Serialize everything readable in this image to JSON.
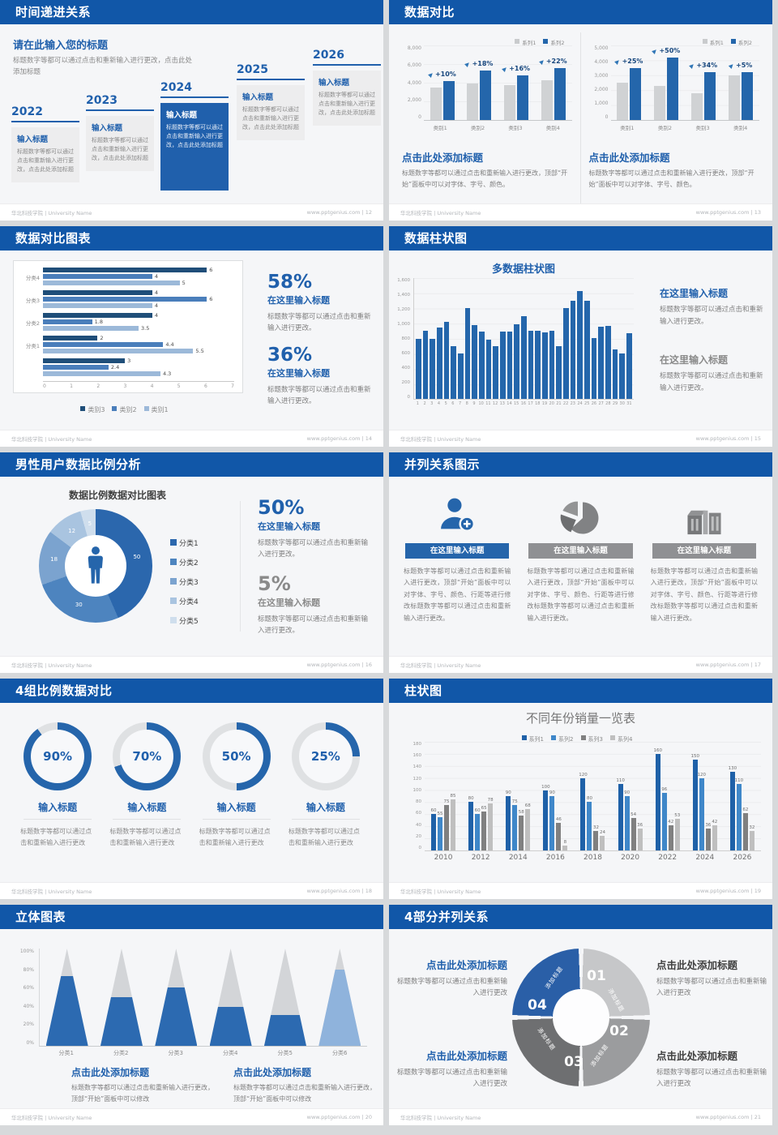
{
  "footer": {
    "brand": "华北科技学院 | University Name",
    "site": "www.pptgenius.com"
  },
  "colors": {
    "header": "#1157a8",
    "accent": "#2060ac",
    "bar_blue": "#2466ab",
    "bar_gray": "#d0d2d4",
    "series": [
      "#1f61a8",
      "#3f87c9",
      "#808080",
      "#bfbfbf"
    ],
    "hbar_series": [
      "#1f4e79",
      "#4a7ebb",
      "#9cb9d9"
    ],
    "donut_colors": [
      "#2b67ad",
      "#4d84bf",
      "#7ba3cf",
      "#a9c4e0",
      "#cfdeed"
    ],
    "ring_colors": [
      "#c6c7c9",
      "#9b9c9e",
      "#6e6f71",
      "#2a5fa7"
    ],
    "cone_fill": "#2c6ab1",
    "cone_light": "#8fb3dc",
    "cone_gray": "#d3d5d8"
  },
  "slides": [
    {
      "type": "timeline",
      "title": "时间递进关系",
      "page": "12",
      "intro_title": "请在此输入您的标题",
      "intro_body": "标题数字等都可以通过点击和重新输入进行更改，点击此处添加标题",
      "item_title": "输入标题",
      "item_body": "标题数字等都可以通过点击和重新输入进行更改，点击此处添加标题",
      "years": [
        "2022",
        "2023",
        "2024",
        "2025",
        "2026"
      ],
      "highlight_index": 2
    },
    {
      "type": "pair-columns",
      "title": "数据对比",
      "page": "13",
      "legend": [
        "系列1",
        "系列2"
      ],
      "caption_title": "点击此处添加标题",
      "caption_body": "标题数字等都可以通过点击和重新输入进行更改，顶部“开始”面板中可以对字体、字号、颜色。",
      "chart_data": [
        {
          "type": "bar",
          "categories": [
            "类别1",
            "类别2",
            "类别3",
            "类别4"
          ],
          "ymax": 8000,
          "yticks": [
            "8,000",
            "6,000",
            "4,000",
            "2,000",
            "0"
          ],
          "series": [
            {
              "name": "系列1",
              "values": [
                3500,
                3900,
                3700,
                4300
              ]
            },
            {
              "name": "系列2",
              "values": [
                4200,
                5300,
                4800,
                5600
              ]
            }
          ],
          "growth": [
            "+10%",
            "+18%",
            "+16%",
            "+22%"
          ]
        },
        {
          "type": "bar",
          "categories": [
            "类别1",
            "类别2",
            "类别3",
            "类别4"
          ],
          "ymax": 5000,
          "yticks": [
            "5,000",
            "4,000",
            "3,000",
            "2,000",
            "1,000",
            "0"
          ],
          "series": [
            {
              "name": "系列1",
              "values": [
                2500,
                2300,
                1800,
                3000
              ]
            },
            {
              "name": "系列2",
              "values": [
                3500,
                4200,
                3200,
                3200
              ]
            }
          ],
          "growth": [
            "+25%",
            "+50%",
            "+34%",
            "+5%"
          ]
        }
      ]
    },
    {
      "type": "hbars",
      "title": "数据对比图表",
      "page": "14",
      "chart_data": {
        "type": "bar",
        "orientation": "horizontal",
        "xmax": 7,
        "xticks": [
          "0",
          "1",
          "2",
          "3",
          "4",
          "5",
          "6",
          "7"
        ],
        "legend": [
          "类别3",
          "类别2",
          "类别1"
        ],
        "groups": [
          {
            "label": "分类4",
            "values": [
              6,
              4,
              5
            ]
          },
          {
            "label": "分类3",
            "values": [
              4,
              6,
              4
            ]
          },
          {
            "label": "分类2",
            "values": [
              4,
              1.8,
              3.5
            ]
          },
          {
            "label": "分类1",
            "values": [
              2,
              4.4,
              5.5
            ]
          },
          {
            "label": "",
            "values": [
              3,
              2.4,
              4.3
            ]
          }
        ]
      },
      "stats": [
        {
          "pct": "58%",
          "title": "在这里输入标题",
          "body": "标题数字等都可以通过点击和重新输入进行更改。",
          "style": "blue"
        },
        {
          "pct": "36%",
          "title": "在这里输入标题",
          "body": "标题数字等都可以通过点击和重新输入进行更改。",
          "style": "blue"
        }
      ]
    },
    {
      "type": "columns31",
      "title": "数据柱状图",
      "page": "15",
      "chart_data": {
        "type": "bar",
        "title": "多数据柱状图",
        "ymax": 1600,
        "yticks": [
          "1,600",
          "1,400",
          "1,200",
          "1,000",
          "800",
          "600",
          "400",
          "200",
          "0"
        ],
        "categories": [
          "1",
          "2",
          "3",
          "4",
          "5",
          "6",
          "7",
          "8",
          "9",
          "10",
          "11",
          "12",
          "13",
          "14",
          "15",
          "16",
          "17",
          "18",
          "19",
          "20",
          "21",
          "22",
          "23",
          "24",
          "25",
          "26",
          "27",
          "28",
          "29",
          "30",
          "31"
        ],
        "values": [
          800,
          900,
          800,
          950,
          1020,
          700,
          600,
          1200,
          980,
          890,
          780,
          700,
          890,
          890,
          990,
          1100,
          900,
          900,
          880,
          900,
          700,
          1200,
          1300,
          1430,
          1300,
          810,
          960,
          970,
          660,
          600,
          870
        ]
      },
      "notes": [
        {
          "title": "在这里输入标题",
          "body": "标题数字等都可以通过点击和重新输入进行更改。",
          "style": "blue"
        },
        {
          "title": "在这里输入标题",
          "body": "标题数字等都可以通过点击和重新输入进行更改。",
          "style": "gray"
        }
      ]
    },
    {
      "type": "donut",
      "title": "男性用户数据比例分析",
      "page": "16",
      "chart_data": {
        "type": "pie",
        "title": "数据比例数据对比图表",
        "labels": [
          "分类1",
          "分类2",
          "分类3",
          "分类4",
          "分类5"
        ],
        "values": [
          50,
          30,
          18,
          12,
          5
        ]
      },
      "stats": [
        {
          "pct": "50%",
          "title": "在这里输入标题",
          "body": "标题数字等都可以通过点击和重新输入进行更改。",
          "style": "blue"
        },
        {
          "pct": "5%",
          "title": "在这里输入标题",
          "body": "标题数字等都可以通过点击和重新输入进行更改。",
          "style": "gray"
        }
      ]
    },
    {
      "type": "three-cols",
      "title": "并列关系图示",
      "page": "17",
      "item_title": "在这里输入标题",
      "item_body": "标题数字等都可以通过点击和重新输入进行更改，顶部“开始”面板中可以对字体、字号、颜色、行距等进行修改标题数字等都可以通过点击和重新输入进行更改。",
      "items": [
        {
          "icon": "person-add",
          "accent": true
        },
        {
          "icon": "pie",
          "accent": false
        },
        {
          "icon": "building",
          "accent": false
        }
      ]
    },
    {
      "type": "gauges",
      "title": "4组比例数据对比",
      "page": "18",
      "item_title": "输入标题",
      "item_body": "标题数字等都可以通过点击和重新输入进行更改",
      "chart_data": {
        "type": "pie",
        "labels": [
          "90%",
          "70%",
          "50%",
          "25%"
        ],
        "values": [
          90,
          70,
          50,
          25
        ]
      }
    },
    {
      "type": "grouped-columns",
      "title": "柱状图",
      "page": "19",
      "chart_data": {
        "type": "bar",
        "title": "不同年份销量一览表",
        "ymax": 180,
        "yticks": [
          "180",
          "160",
          "140",
          "120",
          "100",
          "80",
          "60",
          "40",
          "20",
          "0"
        ],
        "legend": [
          "系列1",
          "系列2",
          "系列3",
          "系列4"
        ],
        "categories": [
          "2010",
          "2012",
          "2014",
          "2016",
          "2018",
          "2020",
          "2022",
          "2024",
          "2026"
        ],
        "series": [
          {
            "name": "系列1",
            "values": [
              60,
              80,
              90,
              100,
              120,
              110,
              160,
              150,
              130
            ]
          },
          {
            "name": "系列2",
            "values": [
              55,
              60,
              75,
              90,
              80,
              90,
              96,
              120,
              110
            ]
          },
          {
            "name": "系列3",
            "values": [
              75,
              65,
              58,
              46,
              32,
              54,
              42,
              36,
              62
            ]
          },
          {
            "name": "系列4",
            "values": [
              85,
              78,
              68,
              8,
              24,
              36,
              53,
              42,
              32
            ]
          }
        ]
      }
    },
    {
      "type": "cones",
      "title": "立体图表",
      "page": "20",
      "chart_data": {
        "type": "bar",
        "style": "3d-cone",
        "categories": [
          "分类1",
          "分类2",
          "分类3",
          "分类4",
          "分类5",
          "分类6"
        ],
        "values_pct": [
          72,
          50,
          60,
          40,
          32,
          78
        ],
        "yticks": [
          "100%",
          "80%",
          "60%",
          "40%",
          "20%",
          "0%"
        ]
      },
      "captions": [
        {
          "title": "点击此处添加标题",
          "body": "标题数字等都可以通过点击和重新输入进行更改，顶部“开始”面板中可以修改"
        },
        {
          "title": "点击此处添加标题",
          "body": "标题数字等都可以通过点击和重新输入进行更改，顶部“开始”面板中可以修改"
        }
      ]
    },
    {
      "type": "ring4",
      "title": "4部分并列关系",
      "page": "21",
      "seg_label": "添加标题",
      "segments": [
        {
          "num": "01"
        },
        {
          "num": "02"
        },
        {
          "num": "03"
        },
        {
          "num": "04"
        }
      ],
      "blocks": [
        {
          "side": "left",
          "title": "点击此处添加标题",
          "body": "标题数字等都可以通过点击和重新输入进行更改"
        },
        {
          "side": "left",
          "title": "点击此处添加标题",
          "body": "标题数字等都可以通过点击和重新输入进行更改"
        },
        {
          "side": "right",
          "title": "点击此处添加标题",
          "body": "标题数字等都可以通过点击和重新输入进行更改"
        },
        {
          "side": "right",
          "title": "点击此处添加标题",
          "body": "标题数字等都可以通过点击和重新输入进行更改"
        }
      ]
    }
  ]
}
